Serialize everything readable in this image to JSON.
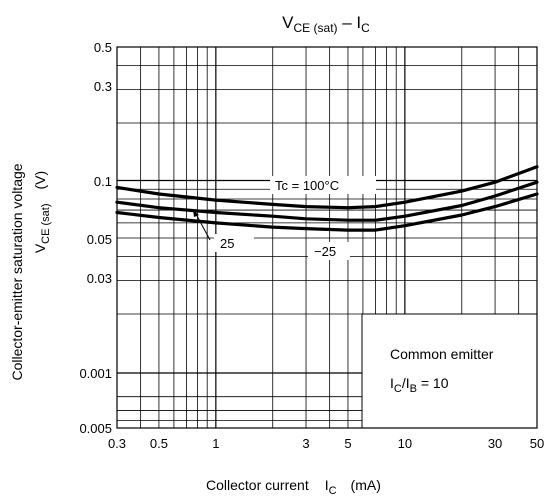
{
  "chart_data": {
    "type": "line",
    "title_main": "V",
    "title_main_sub": "CE (sat)",
    "title_sep": " – I",
    "title_sep_sub": "C",
    "ylabel_line1": "Collector-emitter saturation voltage",
    "ylabel_line2_main": "V",
    "ylabel_line2_sub": "CE (sat)",
    "ylabel_line2_unit": "(V)",
    "xlabel_main": "Collector current",
    "xlabel_symbol": "I",
    "xlabel_sub": "C",
    "xlabel_unit": "(mA)",
    "x_scale": "log",
    "y_scale": "log",
    "xlim": [
      0.3,
      50
    ],
    "ylim_labels": [
      "0.005",
      "0.001",
      "0.03",
      "0.05",
      "0.1",
      "0.3",
      "0.5"
    ],
    "x_ticks": [
      {
        "value": 0.3,
        "label": "0.3"
      },
      {
        "value": 0.5,
        "label": "0.5"
      },
      {
        "value": 1,
        "label": "1"
      },
      {
        "value": 3,
        "label": "3"
      },
      {
        "value": 5,
        "label": "5"
      },
      {
        "value": 10,
        "label": "10"
      },
      {
        "value": 30,
        "label": "30"
      },
      {
        "value": 50,
        "label": "50"
      }
    ],
    "annotation_box": {
      "line1": "Common emitter",
      "line2_main": "I",
      "line2_sub1": "C",
      "line2_mid": "/I",
      "line2_sub2": "B",
      "line2_tail": " = 10"
    },
    "series": [
      {
        "name": "Tc = 100°C",
        "x": [
          0.3,
          0.5,
          1,
          2,
          3,
          5,
          7,
          10,
          20,
          30,
          50
        ],
        "y": [
          0.092,
          0.085,
          0.079,
          0.075,
          0.073,
          0.072,
          0.073,
          0.077,
          0.088,
          0.098,
          0.118
        ]
      },
      {
        "name": "25",
        "x": [
          0.3,
          0.5,
          1,
          2,
          3,
          5,
          7,
          10,
          20,
          30,
          50
        ],
        "y": [
          0.077,
          0.072,
          0.068,
          0.065,
          0.063,
          0.062,
          0.062,
          0.065,
          0.074,
          0.083,
          0.098
        ]
      },
      {
        "name": "−25",
        "x": [
          0.3,
          0.5,
          1,
          2,
          3,
          5,
          7,
          10,
          20,
          30,
          50
        ],
        "y": [
          0.068,
          0.064,
          0.06,
          0.057,
          0.056,
          0.055,
          0.055,
          0.058,
          0.066,
          0.073,
          0.085
        ]
      }
    ],
    "grid": true
  }
}
